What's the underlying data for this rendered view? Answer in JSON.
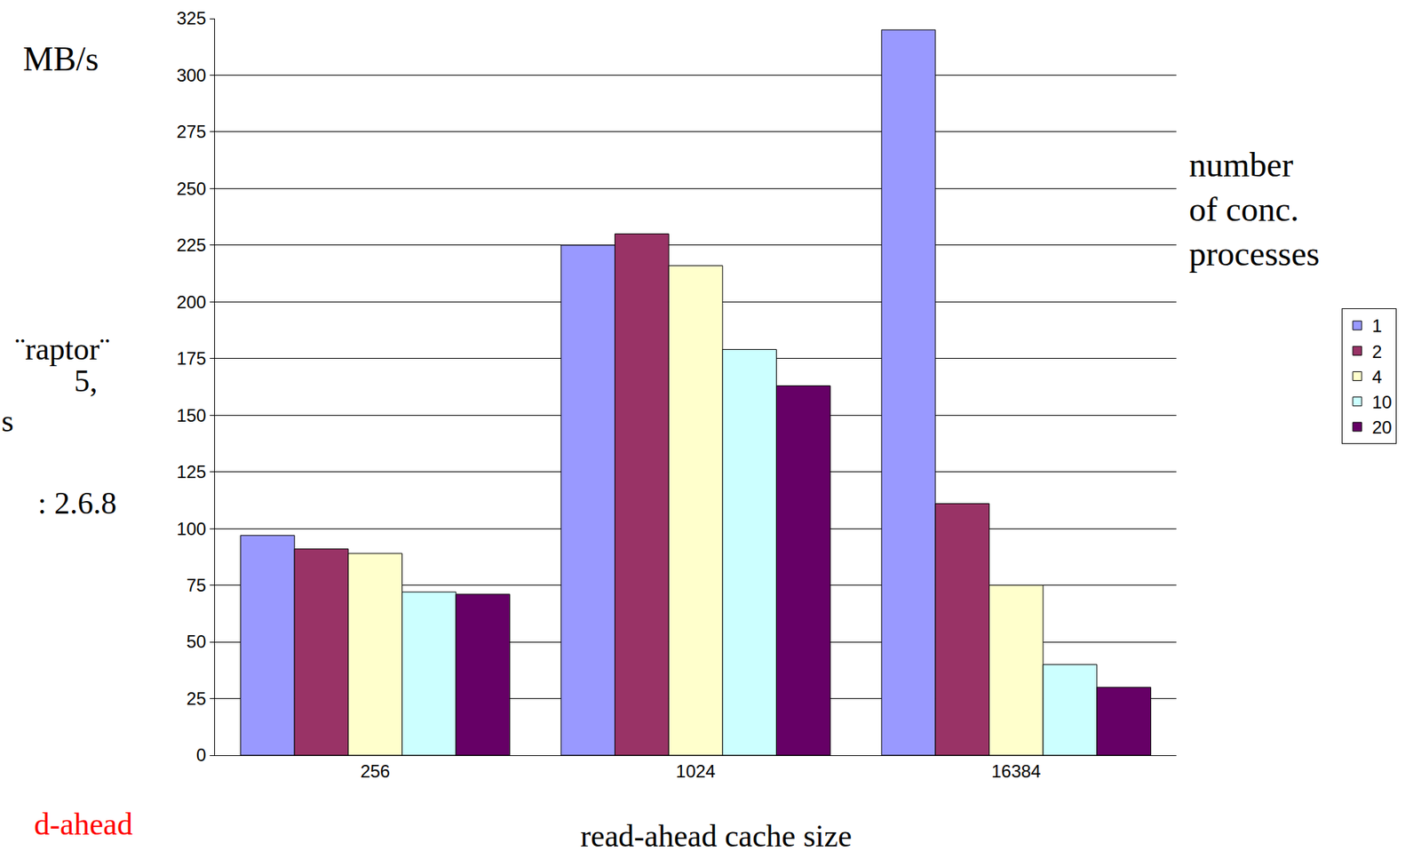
{
  "chart_data": {
    "type": "bar",
    "categories": [
      "256",
      "1024",
      "16384"
    ],
    "series": [
      {
        "name": "1",
        "color": "#9999ff",
        "values": [
          97,
          225,
          320
        ]
      },
      {
        "name": "2",
        "color": "#993366",
        "values": [
          91,
          230,
          111
        ]
      },
      {
        "name": "4",
        "color": "#ffffcc",
        "values": [
          89,
          216,
          75
        ]
      },
      {
        "name": "10",
        "color": "#ccffff",
        "values": [
          72,
          179,
          40
        ]
      },
      {
        "name": "20",
        "color": "#660066",
        "values": [
          71,
          163,
          30
        ]
      }
    ],
    "ylim": [
      0,
      325
    ],
    "yticks": [
      0,
      25,
      50,
      75,
      100,
      125,
      150,
      175,
      200,
      225,
      250,
      275,
      300,
      325
    ],
    "grid": true,
    "xlabel": "read-ahead cache size",
    "ylabel": "MB/s",
    "legend_title": "number of conc. processes",
    "legend": "right",
    "annotations": [
      {
        "text": "¨raptor¨"
      },
      {
        "text": "5,"
      },
      {
        "text": "s"
      },
      {
        "text": ": 2.6.8"
      },
      {
        "text": "d-ahead",
        "color": "#ff0000"
      }
    ]
  }
}
